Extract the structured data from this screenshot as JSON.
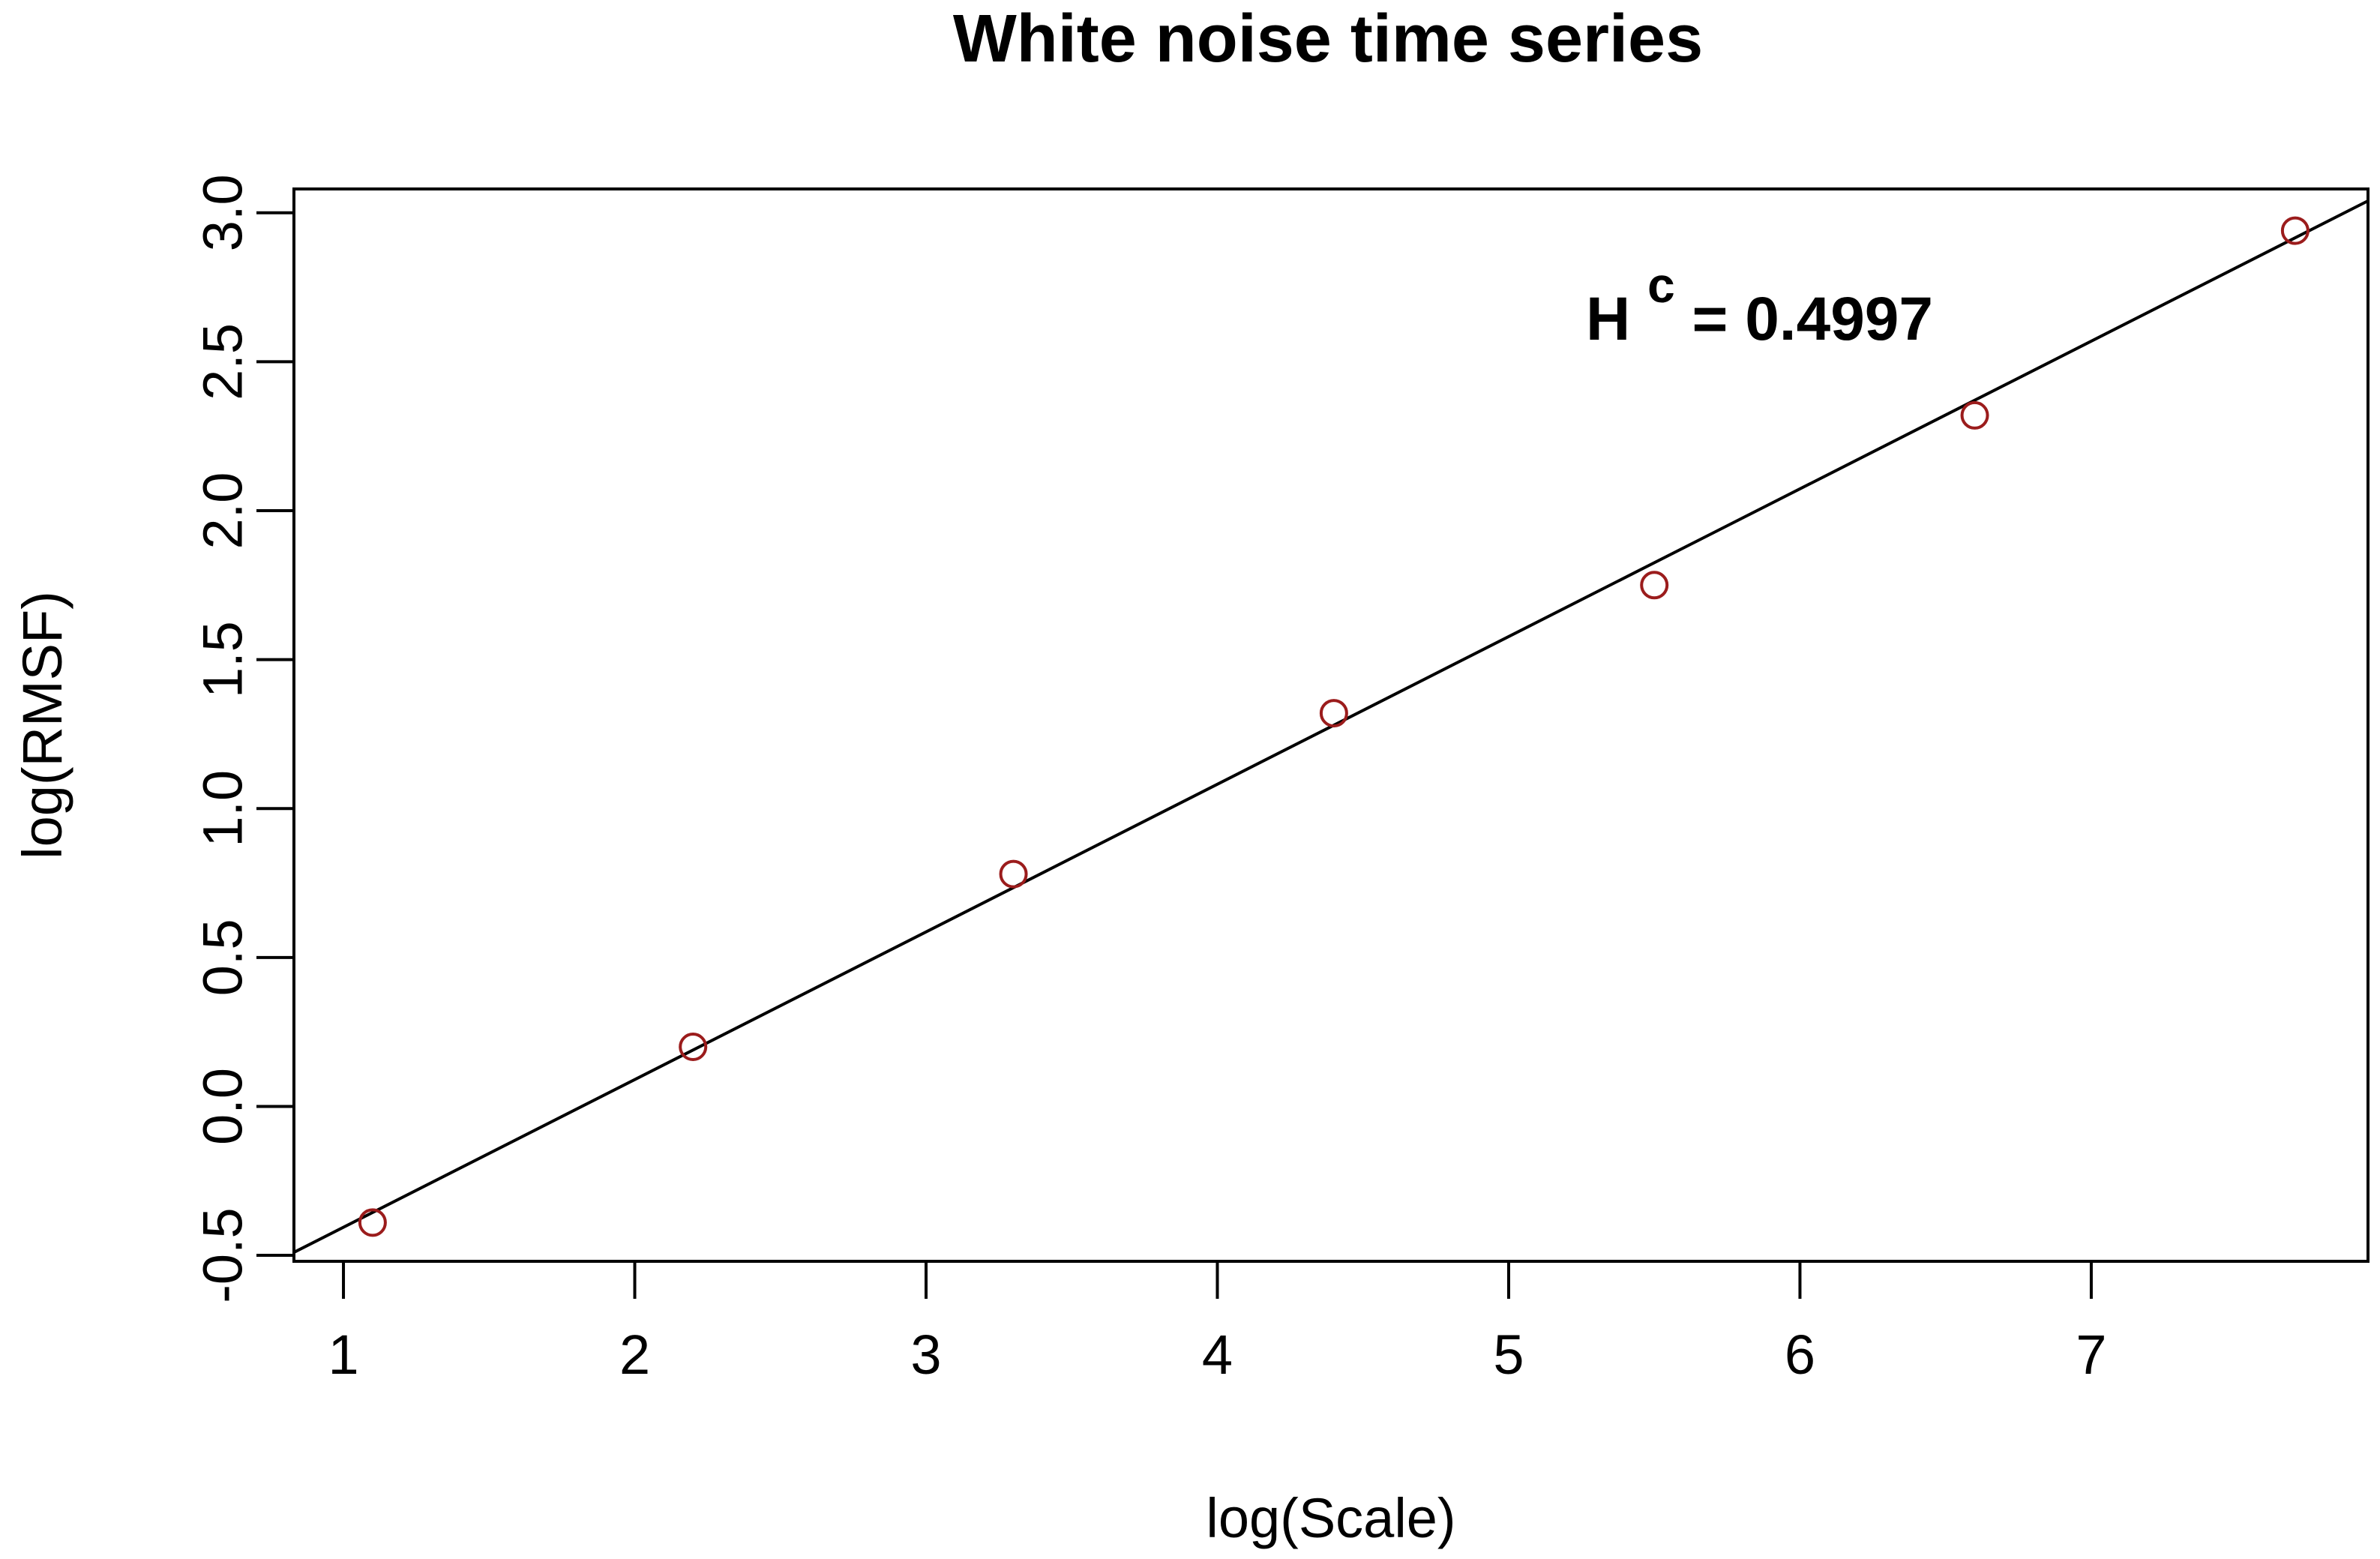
{
  "chart_data": {
    "type": "scatter",
    "title": "White noise time series",
    "xlabel": "log(Scale)",
    "ylabel": "log(RMSF)",
    "xlim": [
      0.83,
      7.95
    ],
    "ylim": [
      -0.52,
      3.08
    ],
    "x_ticks": [
      1,
      2,
      3,
      4,
      5,
      6,
      7
    ],
    "y_ticks": [
      -0.5,
      0.0,
      0.5,
      1.0,
      1.5,
      2.0,
      2.5,
      3.0
    ],
    "x_tick_labels": [
      "1",
      "2",
      "3",
      "4",
      "5",
      "6",
      "7"
    ],
    "y_tick_labels": [
      "-0.5",
      "0.0",
      "0.5",
      "1.0",
      "1.5",
      "2.0",
      "2.5",
      "3.0"
    ],
    "series": [
      {
        "marker": "open-circle",
        "color": "#9b1c1c",
        "x": [
          1.1,
          2.2,
          3.3,
          4.4,
          5.5,
          6.6,
          7.7
        ],
        "y": [
          -0.39,
          0.2,
          0.78,
          1.32,
          1.75,
          2.32,
          2.94
        ]
      }
    ],
    "fit_line": {
      "color": "#000000",
      "x": [
        0.83,
        7.95
      ],
      "y": [
        -0.49,
        3.04
      ]
    },
    "annotation": {
      "base": "H",
      "superscript": "c",
      "text": " = 0.4997"
    },
    "grid": false,
    "legend": "none"
  }
}
